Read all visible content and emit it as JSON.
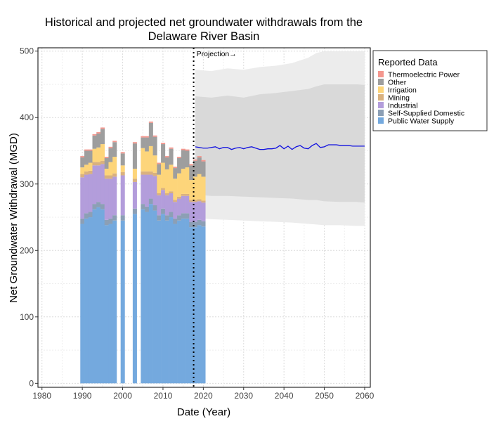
{
  "chart_data": {
    "type": "bar",
    "title": "Historical and projected net groundwater withdrawals from the Delaware River Basin",
    "title_lines": [
      "Historical and projected net groundwater withdrawals from the",
      "Delaware River Basin"
    ],
    "xlabel": "Date (Year)",
    "ylabel": "Net Groundwater Withdrawal (MGD)",
    "xlim": [
      1979,
      2061.4
    ],
    "ylim": [
      -6,
      505
    ],
    "xticks": [
      1980,
      1990,
      2000,
      2010,
      2020,
      2030,
      2040,
      2050,
      2060
    ],
    "yticks": [
      0,
      100,
      200,
      300,
      400,
      500
    ],
    "grid": true,
    "projection_start": 2017.6,
    "projection_label": "Projection→",
    "legend": {
      "title": "Reported Data",
      "placement": "right",
      "entries": [
        "Thermoelectric Power",
        "Other",
        "Irrigation",
        "Mining",
        "Industrial",
        "Self-Supplied Domestic",
        "Public Water Supply"
      ]
    },
    "stack_order": [
      "Public Water Supply",
      "Self-Supplied Domestic",
      "Industrial",
      "Mining",
      "Irrigation",
      "Other",
      "Thermoelectric Power"
    ],
    "colors": {
      "Public Water Supply": "#74a9de",
      "Self-Supplied Domestic": "#8c9fb5",
      "Industrial": "#b39ddb",
      "Mining": "#d9b17f",
      "Irrigation": "#fdd57a",
      "Other": "#9e9e9e",
      "Thermoelectric Power": "#f4978e",
      "median": "#1010e0",
      "inner_band": "#d9d9d9",
      "outer_band": "#ececec"
    },
    "years": [
      1990,
      1991,
      1992,
      1993,
      1994,
      1995,
      1996,
      1997,
      1998,
      2000,
      2003,
      2005,
      2006,
      2007,
      2008,
      2009,
      2010,
      2011,
      2012,
      2013,
      2014,
      2015,
      2016,
      2017,
      2018,
      2019,
      2020
    ],
    "series": [
      {
        "name": "Public Water Supply",
        "values": [
          240,
          248,
          250,
          262,
          265,
          262,
          238,
          240,
          245,
          245,
          255,
          262,
          258,
          270,
          260,
          245,
          255,
          245,
          250,
          240,
          245,
          248,
          248,
          235,
          235,
          238,
          236
        ]
      },
      {
        "name": "Self-Supplied Domestic",
        "values": [
          8,
          8,
          8,
          8,
          8,
          8,
          8,
          8,
          8,
          8,
          8,
          8,
          8,
          8,
          8,
          8,
          8,
          8,
          8,
          8,
          8,
          8,
          8,
          8,
          8,
          8,
          8
        ]
      },
      {
        "name": "Industrial",
        "values": [
          62,
          58,
          57,
          58,
          55,
          60,
          62,
          60,
          58,
          60,
          40,
          44,
          48,
          36,
          44,
          30,
          28,
          30,
          28,
          25,
          25,
          26,
          26,
          30,
          30,
          28,
          28
        ]
      },
      {
        "name": "Mining",
        "values": [
          5,
          5,
          5,
          5,
          5,
          5,
          5,
          5,
          5,
          5,
          5,
          5,
          5,
          5,
          5,
          3,
          3,
          3,
          3,
          3,
          3,
          3,
          3,
          3,
          3,
          3,
          3
        ]
      },
      {
        "name": "Irrigation",
        "values": [
          10,
          10,
          12,
          20,
          22,
          25,
          10,
          20,
          25,
          10,
          15,
          35,
          30,
          38,
          26,
          28,
          38,
          36,
          40,
          32,
          35,
          38,
          40,
          30,
          35,
          38,
          36
        ]
      },
      {
        "name": "Other",
        "values": [
          15,
          21,
          18,
          20,
          21,
          23,
          16,
          21,
          22,
          18,
          38,
          16,
          21,
          35,
          28,
          16,
          28,
          18,
          24,
          16,
          23,
          28,
          25,
          22,
          24,
          25,
          23
        ]
      },
      {
        "name": "Thermoelectric Power",
        "values": [
          2,
          2,
          2,
          2,
          2,
          2,
          2,
          2,
          2,
          2,
          2,
          2,
          2,
          2,
          2,
          2,
          2,
          2,
          2,
          2,
          2,
          2,
          2,
          2,
          2,
          2,
          2
        ]
      }
    ],
    "projection": {
      "years": [
        2018,
        2019,
        2020,
        2021,
        2022,
        2023,
        2024,
        2025,
        2026,
        2027,
        2028,
        2029,
        2030,
        2031,
        2032,
        2033,
        2034,
        2035,
        2036,
        2037,
        2038,
        2039,
        2040,
        2041,
        2042,
        2043,
        2044,
        2045,
        2046,
        2047,
        2048,
        2049,
        2050,
        2051,
        2052,
        2053,
        2054,
        2055,
        2056,
        2057,
        2058,
        2059,
        2060
      ],
      "median": [
        356,
        355,
        354,
        354,
        355,
        356,
        353,
        355,
        355,
        352,
        354,
        355,
        353,
        355,
        356,
        354,
        352,
        352,
        353,
        353,
        354,
        358,
        353,
        357,
        352,
        356,
        358,
        354,
        353,
        358,
        361,
        355,
        356,
        359,
        359,
        359,
        358,
        358,
        358,
        357,
        357,
        357,
        357
      ],
      "band_years": [
        2018,
        2022,
        2026,
        2030,
        2034,
        2038,
        2042,
        2046,
        2048,
        2050,
        2054,
        2058,
        2060
      ],
      "inner_upper": [
        432,
        430,
        433,
        430,
        435,
        437,
        440,
        443,
        447,
        450,
        450,
        450,
        449
      ],
      "inner_lower": [
        284,
        282,
        282,
        281,
        280,
        279,
        278,
        276,
        276,
        274,
        273,
        273,
        272
      ],
      "outer_upper": [
        472,
        470,
        474,
        472,
        476,
        478,
        482,
        490,
        497,
        500,
        500,
        500,
        500
      ],
      "outer_lower": [
        249,
        247,
        246,
        245,
        244,
        243,
        242,
        240,
        239,
        238,
        238,
        237,
        237
      ]
    }
  }
}
